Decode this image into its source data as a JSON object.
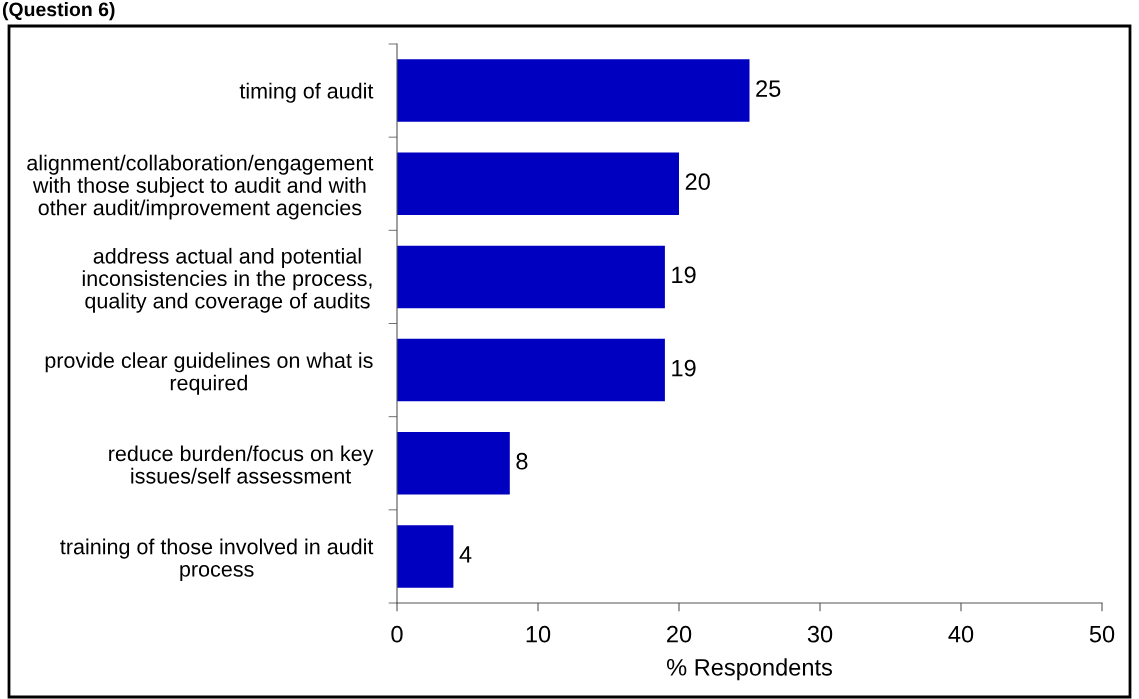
{
  "chart_data": {
    "type": "bar",
    "orientation": "horizontal",
    "title": "(Question 6)",
    "categories": [
      "timing of audit",
      "alignment/collaboration/engagement\nwith those subject to audit and with\nother audit/improvement agencies",
      "address actual and potential\ninconsistencies in the process,\nquality and coverage of audits",
      "provide clear guidelines on what is\nrequired",
      "reduce burden/focus on key\nissues/self assessment",
      "training of those involved in audit\nprocess"
    ],
    "values": [
      25,
      20,
      19,
      19,
      8,
      4
    ],
    "color": "#0000c0",
    "xlim": [
      0,
      50
    ],
    "xticks": [
      0,
      10,
      20,
      30,
      40,
      50
    ],
    "xlabel": "% Respondents",
    "data_labels": true
  }
}
